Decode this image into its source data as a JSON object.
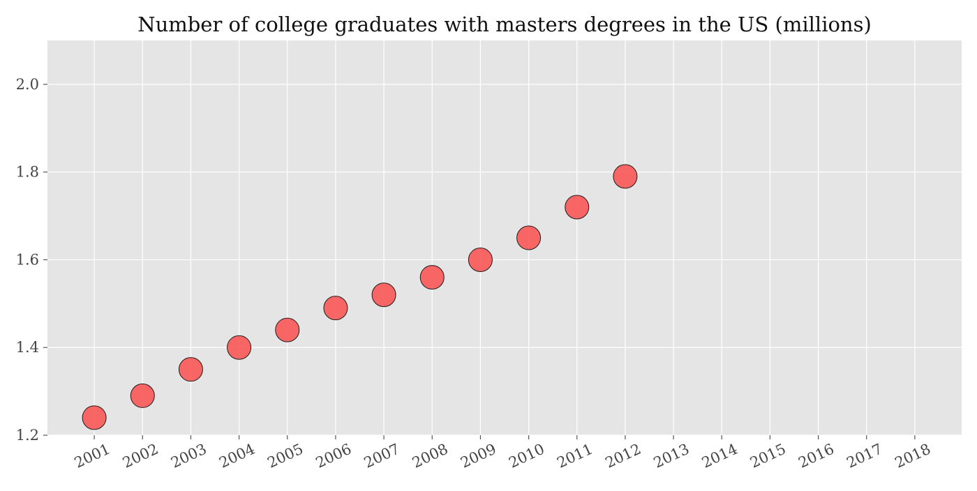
{
  "chart_data": {
    "type": "scatter",
    "title": "Number of college graduates with masters degrees in the US (millions)",
    "xlabel": "",
    "ylabel": "",
    "x": [
      2001,
      2002,
      2003,
      2004,
      2005,
      2006,
      2007,
      2008,
      2009,
      2010,
      2011,
      2012
    ],
    "y": [
      1.24,
      1.29,
      1.35,
      1.4,
      1.44,
      1.49,
      1.52,
      1.56,
      1.6,
      1.65,
      1.72,
      1.79
    ],
    "x_ticks": [
      "2001",
      "2002",
      "2003",
      "2004",
      "2005",
      "2006",
      "2007",
      "2008",
      "2009",
      "2010",
      "2011",
      "2012",
      "2013",
      "2014",
      "2015",
      "2016",
      "2017",
      "2018"
    ],
    "y_ticks": [
      "1.2",
      "1.4",
      "1.6",
      "1.8",
      "2.0"
    ],
    "xlim": [
      2000.03,
      2018.97
    ],
    "ylim": [
      1.2,
      2.1
    ],
    "grid": true,
    "legend": "none",
    "colors": {
      "plot_background": "#e5e5e5",
      "grid": "#ffffff",
      "marker_fill": "#f85a5a",
      "marker_edge": "#1a1a1a"
    }
  }
}
